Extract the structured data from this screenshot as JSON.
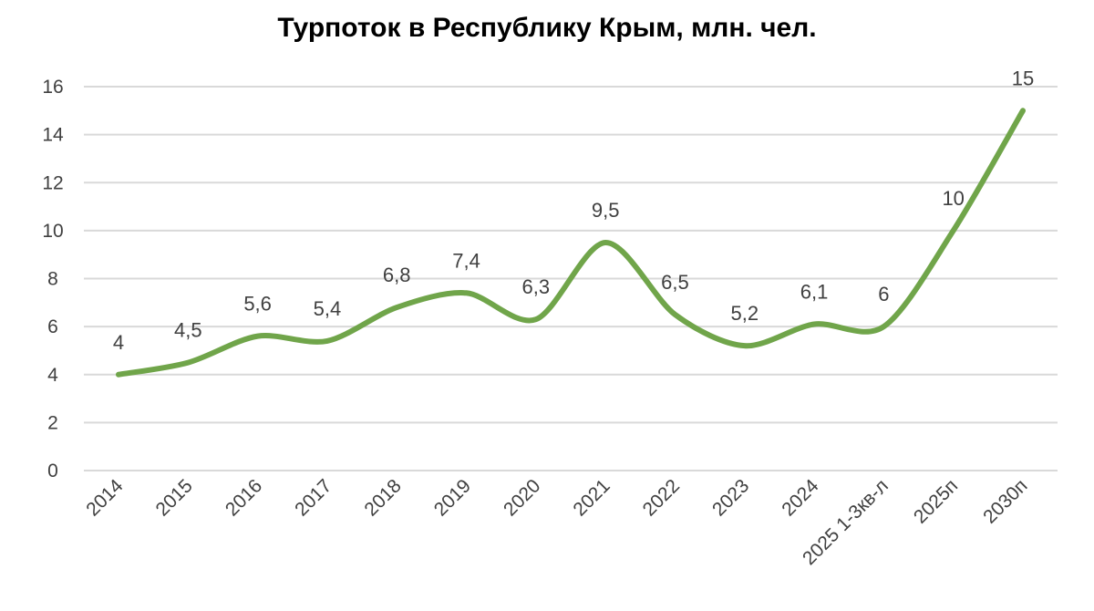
{
  "chart_data": {
    "type": "line",
    "smooth": true,
    "title": "Турпоток в Республику Крым, млн. чел.",
    "xlabel": "",
    "ylabel": "",
    "categories": [
      "2014",
      "2015",
      "2016",
      "2017",
      "2018",
      "2019",
      "2020",
      "2021",
      "2022",
      "2023",
      "2024",
      "2025 1-3кв-л",
      "2025п",
      "2030п"
    ],
    "series": [
      {
        "values": [
          4,
          4.5,
          5.6,
          5.4,
          6.8,
          7.4,
          6.3,
          9.5,
          6.5,
          5.2,
          6.1,
          6,
          10,
          15
        ],
        "labels": [
          "4",
          "4,5",
          "5,6",
          "5,4",
          "6,8",
          "7,4",
          "6,3",
          "9,5",
          "6,5",
          "5,2",
          "6,1",
          "6",
          "10",
          "15"
        ],
        "color": "#70a54a"
      }
    ],
    "ylim": [
      0,
      16
    ],
    "yticks": [
      "0",
      "2",
      "4",
      "6",
      "8",
      "10",
      "12",
      "14",
      "16"
    ],
    "grid": true,
    "legend": "none",
    "gridColor": "#d9d9d9",
    "textColor": "#404040"
  }
}
